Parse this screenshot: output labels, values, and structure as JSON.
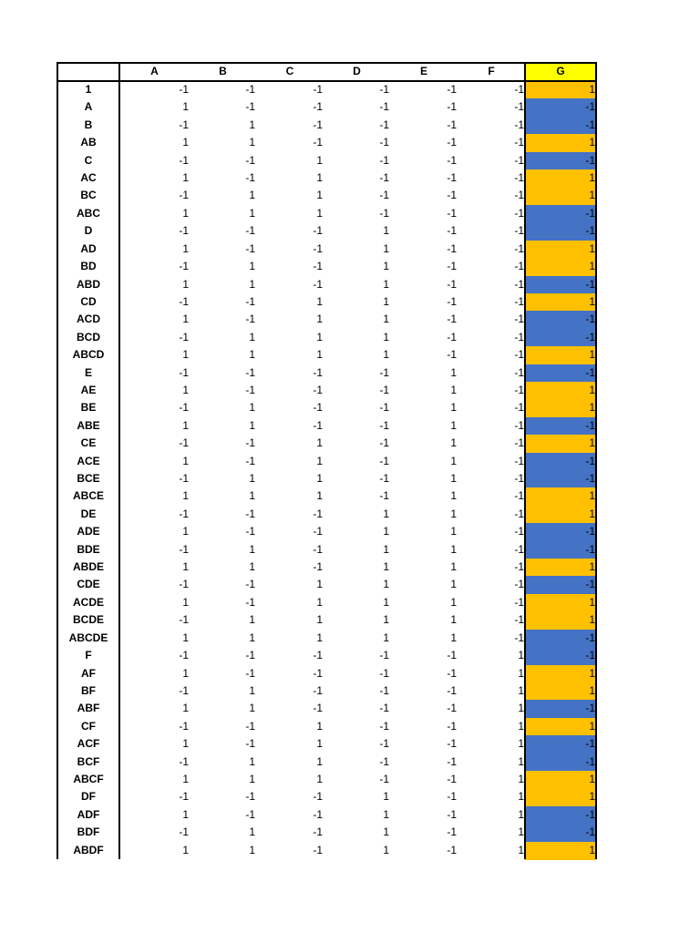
{
  "table": {
    "columns": [
      "A",
      "B",
      "C",
      "D",
      "E",
      "F",
      "G"
    ],
    "positive_color": "#ffc000",
    "negative_color": "#4472c4",
    "header_highlight_color": "#ffff00",
    "rows": [
      {
        "label": "1",
        "values": [
          -1,
          -1,
          -1,
          -1,
          -1,
          -1,
          1
        ]
      },
      {
        "label": "A",
        "values": [
          1,
          -1,
          -1,
          -1,
          -1,
          -1,
          -1
        ]
      },
      {
        "label": "B",
        "values": [
          -1,
          1,
          -1,
          -1,
          -1,
          -1,
          -1
        ]
      },
      {
        "label": "AB",
        "values": [
          1,
          1,
          -1,
          -1,
          -1,
          -1,
          1
        ]
      },
      {
        "label": "C",
        "values": [
          -1,
          -1,
          1,
          -1,
          -1,
          -1,
          -1
        ]
      },
      {
        "label": "AC",
        "values": [
          1,
          -1,
          1,
          -1,
          -1,
          -1,
          1
        ]
      },
      {
        "label": "BC",
        "values": [
          -1,
          1,
          1,
          -1,
          -1,
          -1,
          1
        ]
      },
      {
        "label": "ABC",
        "values": [
          1,
          1,
          1,
          -1,
          -1,
          -1,
          -1
        ]
      },
      {
        "label": "D",
        "values": [
          -1,
          -1,
          -1,
          1,
          -1,
          -1,
          -1
        ]
      },
      {
        "label": "AD",
        "values": [
          1,
          -1,
          -1,
          1,
          -1,
          -1,
          1
        ]
      },
      {
        "label": "BD",
        "values": [
          -1,
          1,
          -1,
          1,
          -1,
          -1,
          1
        ]
      },
      {
        "label": "ABD",
        "values": [
          1,
          1,
          -1,
          1,
          -1,
          -1,
          -1
        ]
      },
      {
        "label": "CD",
        "values": [
          -1,
          -1,
          1,
          1,
          -1,
          -1,
          1
        ]
      },
      {
        "label": "ACD",
        "values": [
          1,
          -1,
          1,
          1,
          -1,
          -1,
          -1
        ]
      },
      {
        "label": "BCD",
        "values": [
          -1,
          1,
          1,
          1,
          -1,
          -1,
          -1
        ]
      },
      {
        "label": "ABCD",
        "values": [
          1,
          1,
          1,
          1,
          -1,
          -1,
          1
        ]
      },
      {
        "label": "E",
        "values": [
          -1,
          -1,
          -1,
          -1,
          1,
          -1,
          -1
        ]
      },
      {
        "label": "AE",
        "values": [
          1,
          -1,
          -1,
          -1,
          1,
          -1,
          1
        ]
      },
      {
        "label": "BE",
        "values": [
          -1,
          1,
          -1,
          -1,
          1,
          -1,
          1
        ]
      },
      {
        "label": "ABE",
        "values": [
          1,
          1,
          -1,
          -1,
          1,
          -1,
          -1
        ]
      },
      {
        "label": "CE",
        "values": [
          -1,
          -1,
          1,
          -1,
          1,
          -1,
          1
        ]
      },
      {
        "label": "ACE",
        "values": [
          1,
          -1,
          1,
          -1,
          1,
          -1,
          -1
        ]
      },
      {
        "label": "BCE",
        "values": [
          -1,
          1,
          1,
          -1,
          1,
          -1,
          -1
        ]
      },
      {
        "label": "ABCE",
        "values": [
          1,
          1,
          1,
          -1,
          1,
          -1,
          1
        ]
      },
      {
        "label": "DE",
        "values": [
          -1,
          -1,
          -1,
          1,
          1,
          -1,
          1
        ]
      },
      {
        "label": "ADE",
        "values": [
          1,
          -1,
          -1,
          1,
          1,
          -1,
          -1
        ]
      },
      {
        "label": "BDE",
        "values": [
          -1,
          1,
          -1,
          1,
          1,
          -1,
          -1
        ]
      },
      {
        "label": "ABDE",
        "values": [
          1,
          1,
          -1,
          1,
          1,
          -1,
          1
        ]
      },
      {
        "label": "CDE",
        "values": [
          -1,
          -1,
          1,
          1,
          1,
          -1,
          -1
        ]
      },
      {
        "label": "ACDE",
        "values": [
          1,
          -1,
          1,
          1,
          1,
          -1,
          1
        ]
      },
      {
        "label": "BCDE",
        "values": [
          -1,
          1,
          1,
          1,
          1,
          -1,
          1
        ]
      },
      {
        "label": "ABCDE",
        "values": [
          1,
          1,
          1,
          1,
          1,
          -1,
          -1
        ]
      },
      {
        "label": "F",
        "values": [
          -1,
          -1,
          -1,
          -1,
          -1,
          1,
          -1
        ]
      },
      {
        "label": "AF",
        "values": [
          1,
          -1,
          -1,
          -1,
          -1,
          1,
          1
        ]
      },
      {
        "label": "BF",
        "values": [
          -1,
          1,
          -1,
          -1,
          -1,
          1,
          1
        ]
      },
      {
        "label": "ABF",
        "values": [
          1,
          1,
          -1,
          -1,
          -1,
          1,
          -1
        ]
      },
      {
        "label": "CF",
        "values": [
          -1,
          -1,
          1,
          -1,
          -1,
          1,
          1
        ]
      },
      {
        "label": "ACF",
        "values": [
          1,
          -1,
          1,
          -1,
          -1,
          1,
          -1
        ]
      },
      {
        "label": "BCF",
        "values": [
          -1,
          1,
          1,
          -1,
          -1,
          1,
          -1
        ]
      },
      {
        "label": "ABCF",
        "values": [
          1,
          1,
          1,
          -1,
          -1,
          1,
          1
        ]
      },
      {
        "label": "DF",
        "values": [
          -1,
          -1,
          -1,
          1,
          -1,
          1,
          1
        ]
      },
      {
        "label": "ADF",
        "values": [
          1,
          -1,
          -1,
          1,
          -1,
          1,
          -1
        ]
      },
      {
        "label": "BDF",
        "values": [
          -1,
          1,
          -1,
          1,
          -1,
          1,
          -1
        ]
      },
      {
        "label": "ABDF",
        "values": [
          1,
          1,
          -1,
          1,
          -1,
          1,
          1
        ]
      }
    ]
  }
}
